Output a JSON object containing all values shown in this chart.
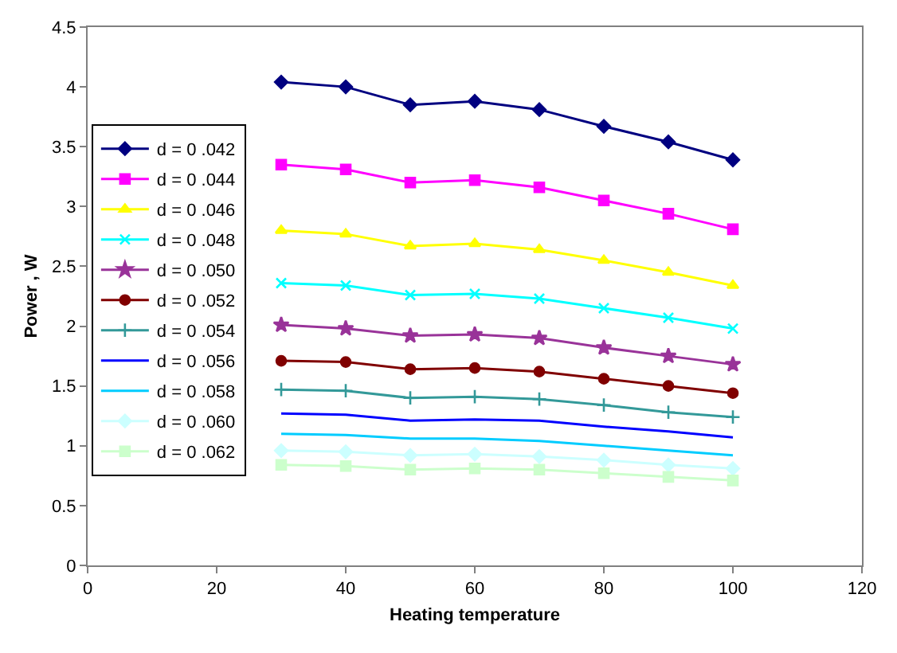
{
  "chart_data": {
    "type": "line",
    "xlabel": "Heating temperature",
    "ylabel": "Power , W",
    "x": [
      30,
      40,
      50,
      60,
      70,
      80,
      90,
      100
    ],
    "xlim": [
      0,
      120
    ],
    "xticks": [
      0,
      20,
      40,
      60,
      80,
      100,
      120
    ],
    "ylim": [
      0,
      4.5
    ],
    "yticks": [
      0,
      0.5,
      1,
      1.5,
      2,
      2.5,
      3,
      3.5,
      4,
      4.5
    ],
    "grid": false,
    "legend": "left",
    "line_style": "solid",
    "series": [
      {
        "name": "d = 0 .042",
        "color": "#000080",
        "marker": "diamond",
        "values": [
          4.04,
          4.0,
          3.85,
          3.88,
          3.81,
          3.67,
          3.54,
          3.39
        ]
      },
      {
        "name": "d = 0 .044",
        "color": "#ff00ff",
        "marker": "square",
        "values": [
          3.35,
          3.31,
          3.2,
          3.22,
          3.16,
          3.05,
          2.94,
          2.81
        ]
      },
      {
        "name": "d = 0 .046",
        "color": "#ffff00",
        "marker": "triangle",
        "values": [
          2.8,
          2.77,
          2.67,
          2.69,
          2.64,
          2.55,
          2.45,
          2.34
        ]
      },
      {
        "name": "d = 0 .048",
        "color": "#00ffff",
        "marker": "cross",
        "values": [
          2.36,
          2.34,
          2.26,
          2.27,
          2.23,
          2.15,
          2.07,
          1.98
        ]
      },
      {
        "name": "d = 0 .050",
        "color": "#993399",
        "marker": "star",
        "values": [
          2.01,
          1.98,
          1.92,
          1.93,
          1.9,
          1.82,
          1.75,
          1.68
        ]
      },
      {
        "name": "d = 0 .052",
        "color": "#800000",
        "marker": "circle",
        "values": [
          1.71,
          1.7,
          1.64,
          1.65,
          1.62,
          1.56,
          1.5,
          1.44
        ]
      },
      {
        "name": "d = 0 .054",
        "color": "#339999",
        "marker": "plus",
        "values": [
          1.47,
          1.46,
          1.4,
          1.41,
          1.39,
          1.34,
          1.28,
          1.24
        ]
      },
      {
        "name": "d = 0 .056",
        "color": "#0000ff",
        "marker": "none",
        "values": [
          1.27,
          1.26,
          1.21,
          1.22,
          1.21,
          1.16,
          1.12,
          1.07
        ]
      },
      {
        "name": "d = 0 .058",
        "color": "#00ccff",
        "marker": "none",
        "values": [
          1.1,
          1.09,
          1.06,
          1.06,
          1.04,
          1.0,
          0.96,
          0.92
        ]
      },
      {
        "name": "d = 0 .060",
        "color": "#ccffff",
        "marker": "diamond",
        "values": [
          0.96,
          0.95,
          0.92,
          0.93,
          0.91,
          0.88,
          0.84,
          0.81
        ]
      },
      {
        "name": "d = 0 .062",
        "color": "#ccffcc",
        "marker": "square",
        "values": [
          0.84,
          0.83,
          0.8,
          0.81,
          0.8,
          0.77,
          0.74,
          0.71
        ]
      }
    ]
  }
}
